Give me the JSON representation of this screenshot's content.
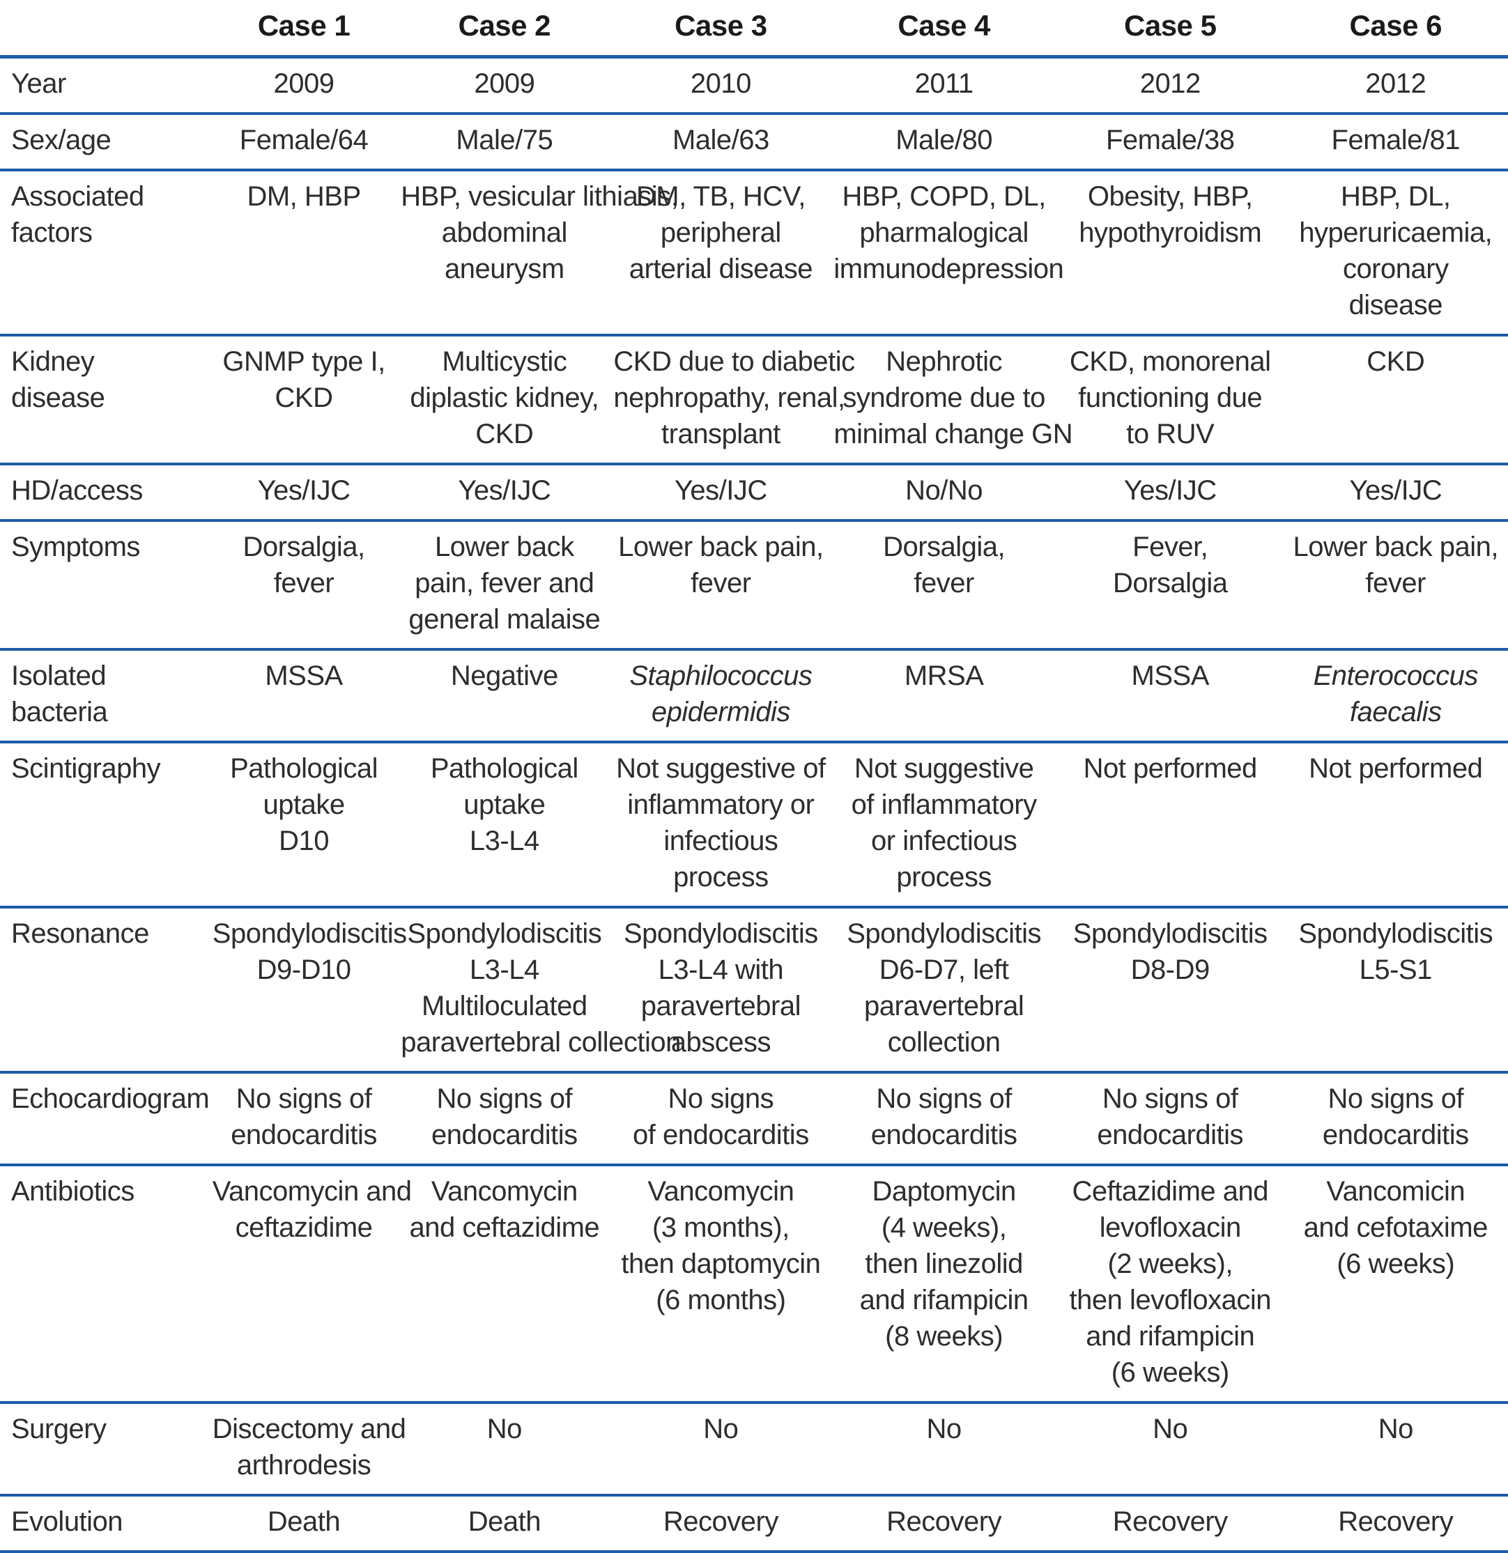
{
  "colors": {
    "rule_blue": "#1e5ba8",
    "text": "#2e2d2c",
    "header_text": "#1c1b1a",
    "background": "#ffffff"
  },
  "table": {
    "corner_label": "",
    "column_headers": [
      "Case 1",
      "Case 2",
      "Case 3",
      "Case 4",
      "Case 5",
      "Case 6"
    ],
    "rows": [
      {
        "label": "Year",
        "cells": [
          "2009",
          "2009",
          "2010",
          "2011",
          "2012",
          "2012"
        ]
      },
      {
        "label": "Sex/age",
        "cells": [
          "Female/64",
          "Male/75",
          "Male/63",
          "Male/80",
          "Female/38",
          "Female/81"
        ]
      },
      {
        "label": "Associated\nfactors",
        "cells": [
          "DM, HBP",
          "HBP, vesicular lithiasis,\nabdominal\naneurysm",
          "DM, TB, HCV,\nperipheral\narterial disease",
          "HBP, COPD, DL,\npharmalogical\nimmunodepression",
          "Obesity, HBP,\nhypothyroidism",
          "HBP, DL,\nhyperuricaemia,\ncoronary\ndisease"
        ]
      },
      {
        "label": "Kidney\ndisease",
        "cells": [
          "GNMP type I,\nCKD",
          "Multicystic\ndiplastic kidney,\nCKD",
          "CKD due to diabetic\nnephropathy, renal,\ntransplant",
          "Nephrotic\nsyndrome due to\nminimal change GN",
          "CKD, monorenal\nfunctioning due\nto RUV",
          "CKD"
        ]
      },
      {
        "label": "HD/access",
        "cells": [
          "Yes/IJC",
          "Yes/IJC",
          "Yes/IJC",
          "No/No",
          "Yes/IJC",
          "Yes/IJC"
        ]
      },
      {
        "label": "Symptoms",
        "cells": [
          "Dorsalgia,\nfever",
          "Lower back\npain, fever and\ngeneral malaise",
          "Lower back pain,\nfever",
          "Dorsalgia,\nfever",
          "Fever,\nDorsalgia",
          "Lower back pain,\nfever"
        ]
      },
      {
        "label": "Isolated\nbacteria",
        "cells": [
          "MSSA",
          "Negative",
          "Staphilococcus\nepidermidis",
          "MRSA",
          "MSSA",
          "Enterococcus\nfaecalis"
        ],
        "italics": [
          false,
          false,
          true,
          false,
          false,
          true
        ]
      },
      {
        "label": "Scintigraphy",
        "cells": [
          "Pathological\nuptake\nD10",
          "Pathological\nuptake\nL3-L4",
          "Not suggestive of\ninflammatory or\ninfectious\nprocess",
          "Not suggestive\nof inflammatory\nor infectious\nprocess",
          "Not performed",
          "Not performed"
        ]
      },
      {
        "label": "Resonance",
        "cells": [
          "Spondylodiscitis\nD9-D10",
          "Spondylodiscitis\nL3-L4\nMultiloculated\nparavertebral collection",
          "Spondylodiscitis\nL3-L4 with\nparavertebral\nabscess",
          "Spondylodiscitis\nD6-D7, left\nparavertebral\ncollection",
          "Spondylodiscitis\nD8-D9",
          "Spondylodiscitis\nL5-S1"
        ]
      },
      {
        "label": "Echocardiogram",
        "cells": [
          "No signs of\nendocarditis",
          "No signs of\nendocarditis",
          "No signs\nof endocarditis",
          "No signs of\nendocarditis",
          "No signs of\nendocarditis",
          "No signs of\nendocarditis"
        ]
      },
      {
        "label": "Antibiotics",
        "cells": [
          "Vancomycin and\nceftazidime",
          "Vancomycin\nand ceftazidime",
          "Vancomycin\n(3 months),\nthen daptomycin\n(6 months)",
          "Daptomycin\n(4 weeks),\nthen linezolid\nand rifampicin\n(8 weeks)",
          "Ceftazidime and\nlevofloxacin\n(2 weeks),\nthen levofloxacin\nand rifampicin\n(6 weeks)",
          "Vancomicin\nand cefotaxime\n(6 weeks)"
        ]
      },
      {
        "label": "Surgery",
        "cells": [
          "Discectomy and\narthrodesis",
          "No",
          "No",
          "No",
          "No",
          "No"
        ]
      },
      {
        "label": "Evolution",
        "cells": [
          "Death",
          "Death",
          "Recovery",
          "Recovery",
          "Recovery",
          "Recovery"
        ]
      }
    ]
  }
}
